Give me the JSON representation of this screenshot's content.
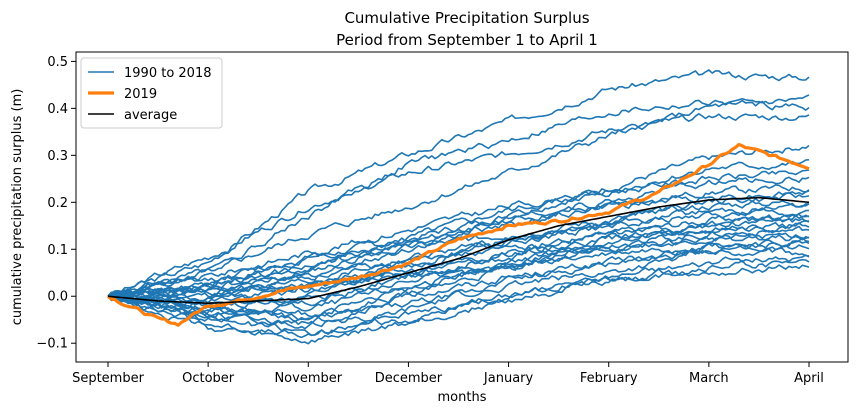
{
  "chart_data": {
    "type": "line",
    "title": "Cumulative Precipitation Surplus",
    "subtitle": "Period from September 1 to April 1",
    "xlabel": "months",
    "ylabel": "cumulative precipitation surplus (m)",
    "x_categories": [
      "September",
      "October",
      "November",
      "December",
      "January",
      "February",
      "March",
      "April"
    ],
    "xlim": [
      0,
      7
    ],
    "ylim": [
      -0.14,
      0.52
    ],
    "yticks": [
      -0.1,
      0.0,
      0.1,
      0.2,
      0.3,
      0.4,
      0.5
    ],
    "ytick_labels": [
      "−0.1",
      "0.0",
      "0.1",
      "0.2",
      "0.3",
      "0.4",
      "0.5"
    ],
    "grid": false,
    "legend": {
      "position": "top-left",
      "entries": [
        "1990 to 2018",
        "2019",
        "average"
      ]
    },
    "colors": {
      "historic": "#1f77b4",
      "current": "#ff7f0e",
      "average": "#000000"
    },
    "series": [
      {
        "name": "1990 to 2018",
        "group": "historic",
        "x": [
          0,
          1,
          2,
          3,
          4,
          5,
          6,
          7
        ],
        "values": [
          0.0,
          0.07,
          0.22,
          0.3,
          0.37,
          0.44,
          0.47,
          0.465
        ]
      },
      {
        "group": "historic",
        "x": [
          0,
          1,
          2,
          3,
          4,
          5,
          6,
          7
        ],
        "values": [
          0.0,
          0.05,
          0.17,
          0.28,
          0.33,
          0.39,
          0.41,
          0.4
        ]
      },
      {
        "group": "historic",
        "x": [
          0,
          1,
          2,
          3,
          4,
          5,
          6,
          7
        ],
        "values": [
          0.0,
          0.05,
          0.13,
          0.19,
          0.26,
          0.34,
          0.4,
          0.42
        ]
      },
      {
        "group": "historic",
        "x": [
          0,
          1,
          2,
          3,
          4,
          5,
          6,
          7
        ],
        "values": [
          0.0,
          0.08,
          0.19,
          0.26,
          0.3,
          0.35,
          0.38,
          0.38
        ]
      },
      {
        "group": "historic",
        "x": [
          0,
          1,
          2,
          3,
          4,
          5,
          6,
          7
        ],
        "values": [
          0.0,
          0.02,
          0.08,
          0.12,
          0.17,
          0.23,
          0.29,
          0.32
        ]
      },
      {
        "group": "historic",
        "x": [
          0,
          1,
          2,
          3,
          4,
          5,
          6,
          7
        ],
        "values": [
          0.0,
          0.02,
          0.06,
          0.12,
          0.18,
          0.22,
          0.27,
          0.28
        ]
      },
      {
        "group": "historic",
        "x": [
          0,
          1,
          2,
          3,
          4,
          5,
          6,
          7
        ],
        "values": [
          0.0,
          0.04,
          0.09,
          0.14,
          0.19,
          0.22,
          0.25,
          0.26
        ]
      },
      {
        "group": "historic",
        "x": [
          0,
          1,
          2,
          3,
          4,
          5,
          6,
          7
        ],
        "values": [
          0.0,
          -0.01,
          0.04,
          0.1,
          0.17,
          0.2,
          0.24,
          0.25
        ]
      },
      {
        "group": "historic",
        "x": [
          0,
          1,
          2,
          3,
          4,
          5,
          6,
          7
        ],
        "values": [
          0.0,
          0.0,
          0.05,
          0.11,
          0.16,
          0.19,
          0.22,
          0.23
        ]
      },
      {
        "group": "historic",
        "x": [
          0,
          1,
          2,
          3,
          4,
          5,
          6,
          7
        ],
        "values": [
          0.0,
          0.03,
          0.08,
          0.11,
          0.15,
          0.19,
          0.21,
          0.22
        ]
      },
      {
        "group": "historic",
        "x": [
          0,
          1,
          2,
          3,
          4,
          5,
          6,
          7
        ],
        "values": [
          0.0,
          -0.02,
          0.0,
          0.06,
          0.12,
          0.16,
          0.2,
          0.21
        ]
      },
      {
        "group": "historic",
        "x": [
          0,
          1,
          2,
          3,
          4,
          5,
          6,
          7
        ],
        "values": [
          0.0,
          0.02,
          0.06,
          0.1,
          0.13,
          0.16,
          0.19,
          0.2
        ]
      },
      {
        "group": "historic",
        "x": [
          0,
          1,
          2,
          3,
          4,
          5,
          6,
          7
        ],
        "values": [
          0.0,
          -0.03,
          0.02,
          0.07,
          0.11,
          0.15,
          0.18,
          0.19
        ]
      },
      {
        "group": "historic",
        "x": [
          0,
          1,
          2,
          3,
          4,
          5,
          6,
          7
        ],
        "values": [
          0.0,
          0.01,
          0.03,
          0.08,
          0.12,
          0.15,
          0.17,
          0.18
        ]
      },
      {
        "group": "historic",
        "x": [
          0,
          1,
          2,
          3,
          4,
          5,
          6,
          7
        ],
        "values": [
          0.0,
          -0.04,
          -0.02,
          0.04,
          0.09,
          0.13,
          0.16,
          0.17
        ]
      },
      {
        "group": "historic",
        "x": [
          0,
          1,
          2,
          3,
          4,
          5,
          6,
          7
        ],
        "values": [
          0.0,
          0.02,
          0.04,
          0.07,
          0.1,
          0.13,
          0.15,
          0.16
        ]
      },
      {
        "group": "historic",
        "x": [
          0,
          1,
          2,
          3,
          4,
          5,
          6,
          7
        ],
        "values": [
          0.0,
          -0.01,
          0.01,
          0.05,
          0.09,
          0.12,
          0.14,
          0.15
        ]
      },
      {
        "group": "historic",
        "x": [
          0,
          1,
          2,
          3,
          4,
          5,
          6,
          7
        ],
        "values": [
          0.0,
          0.0,
          0.02,
          0.05,
          0.08,
          0.11,
          0.13,
          0.14
        ]
      },
      {
        "group": "historic",
        "x": [
          0,
          1,
          2,
          3,
          4,
          5,
          6,
          7
        ],
        "values": [
          0.0,
          -0.05,
          -0.06,
          0.0,
          0.06,
          0.1,
          0.12,
          0.13
        ]
      },
      {
        "group": "historic",
        "x": [
          0,
          1,
          2,
          3,
          4,
          5,
          6,
          7
        ],
        "values": [
          0.0,
          0.01,
          0.02,
          0.04,
          0.07,
          0.1,
          0.12,
          0.12
        ]
      },
      {
        "group": "historic",
        "x": [
          0,
          1,
          2,
          3,
          4,
          5,
          6,
          7
        ],
        "values": [
          0.0,
          -0.02,
          -0.01,
          0.03,
          0.06,
          0.09,
          0.11,
          0.11
        ]
      },
      {
        "group": "historic",
        "x": [
          0,
          1,
          2,
          3,
          4,
          5,
          6,
          7
        ],
        "values": [
          0.0,
          -0.06,
          -0.09,
          -0.03,
          0.03,
          0.07,
          0.1,
          0.1
        ]
      },
      {
        "group": "historic",
        "x": [
          0,
          1,
          2,
          3,
          4,
          5,
          6,
          7
        ],
        "values": [
          0.0,
          -0.03,
          -0.04,
          0.0,
          0.04,
          0.07,
          0.09,
          0.09
        ]
      },
      {
        "group": "historic",
        "x": [
          0,
          1,
          2,
          3,
          4,
          5,
          6,
          7
        ],
        "values": [
          0.0,
          -0.05,
          -0.08,
          -0.05,
          0.0,
          0.04,
          0.07,
          0.08
        ]
      },
      {
        "group": "historic",
        "x": [
          0,
          1,
          2,
          3,
          4,
          5,
          6,
          7
        ],
        "values": [
          0.0,
          -0.07,
          -0.1,
          -0.06,
          -0.01,
          0.03,
          0.06,
          0.07
        ]
      },
      {
        "group": "historic",
        "x": [
          0,
          1,
          2,
          3,
          4,
          5,
          6,
          7
        ],
        "values": [
          0.0,
          -0.04,
          -0.06,
          -0.04,
          0.0,
          0.03,
          0.05,
          0.065
        ]
      },
      {
        "group": "historic",
        "x": [
          0,
          1,
          2,
          3,
          4,
          5,
          6,
          7
        ],
        "values": [
          0.0,
          -0.02,
          -0.05,
          -0.02,
          0.02,
          0.05,
          0.09,
          0.12
        ]
      },
      {
        "group": "historic",
        "x": [
          0,
          1,
          2,
          3,
          4,
          5,
          6,
          7
        ],
        "values": [
          0.0,
          0.01,
          -0.03,
          0.02,
          0.06,
          0.11,
          0.15,
          0.17
        ]
      },
      {
        "group": "historic",
        "x": [
          0,
          1,
          2,
          3,
          4,
          5,
          6,
          7
        ],
        "values": [
          0.0,
          -0.03,
          -0.05,
          0.01,
          0.07,
          0.12,
          0.14,
          0.15
        ]
      },
      {
        "name": "2019",
        "group": "current",
        "x": [
          0,
          0.3,
          0.5,
          0.7,
          1.0,
          1.3,
          1.7,
          2.0,
          2.5,
          3.0,
          3.5,
          4.0,
          4.5,
          5.0,
          5.5,
          6.0,
          6.3,
          6.6,
          7.0
        ],
        "values": [
          0.0,
          -0.03,
          -0.05,
          -0.06,
          -0.02,
          -0.01,
          0.01,
          0.02,
          0.04,
          0.07,
          0.12,
          0.15,
          0.16,
          0.18,
          0.22,
          0.28,
          0.32,
          0.3,
          0.275
        ]
      },
      {
        "name": "average",
        "group": "average",
        "x": [
          0,
          0.5,
          1.0,
          1.5,
          2.0,
          2.5,
          3.0,
          3.5,
          4.0,
          4.5,
          5.0,
          5.5,
          6.0,
          6.5,
          7.0
        ],
        "values": [
          0.0,
          -0.01,
          -0.015,
          -0.01,
          -0.005,
          0.02,
          0.05,
          0.08,
          0.12,
          0.15,
          0.17,
          0.19,
          0.205,
          0.21,
          0.2
        ]
      }
    ]
  }
}
